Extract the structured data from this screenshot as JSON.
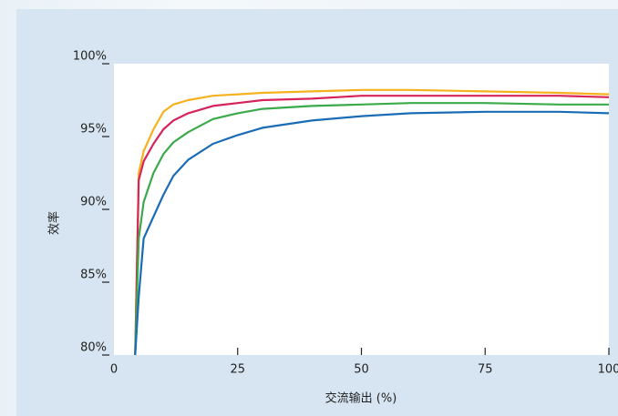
{
  "chart_data": {
    "type": "line",
    "y_label": "效率",
    "x_label": "交流输出 (%)",
    "x": [
      4.3,
      5,
      6,
      8,
      10,
      12,
      15,
      20,
      25,
      30,
      40,
      50,
      60,
      75,
      90,
      100
    ],
    "series": [
      {
        "color": "#f5b21e",
        "values": [
          80,
          92.5,
          94,
          95.5,
          96.7,
          97.2,
          97.5,
          97.8,
          97.9,
          98,
          98.1,
          98.2,
          98.2,
          98.1,
          98.0,
          97.9
        ]
      },
      {
        "color": "#d6245a",
        "values": [
          80,
          92,
          93.3,
          94.5,
          95.5,
          96.1,
          96.6,
          97.1,
          97.3,
          97.5,
          97.6,
          97.8,
          97.8,
          97.8,
          97.8,
          97.7
        ]
      },
      {
        "color": "#3aaa4a",
        "values": [
          80,
          88,
          90.5,
          92.5,
          93.8,
          94.6,
          95.3,
          96.2,
          96.6,
          96.9,
          97.1,
          97.2,
          97.3,
          97.3,
          97.2,
          97.2
        ]
      },
      {
        "color": "#1a6db5",
        "values": [
          80,
          84,
          88,
          89.5,
          91,
          92.3,
          93.4,
          94.5,
          95.1,
          95.6,
          96.1,
          96.4,
          96.6,
          96.7,
          96.7,
          96.6
        ]
      }
    ],
    "xlim": [
      0,
      100
    ],
    "xticks": [
      0,
      25,
      50,
      75,
      100
    ],
    "ylim": [
      80,
      100
    ],
    "yticks": [
      {
        "value": 80,
        "label": "80%"
      },
      {
        "value": 85,
        "label": "85%"
      },
      {
        "value": 90,
        "label": "90%"
      },
      {
        "value": 95,
        "label": "95%"
      },
      {
        "value": 100,
        "label": "100%"
      }
    ]
  }
}
